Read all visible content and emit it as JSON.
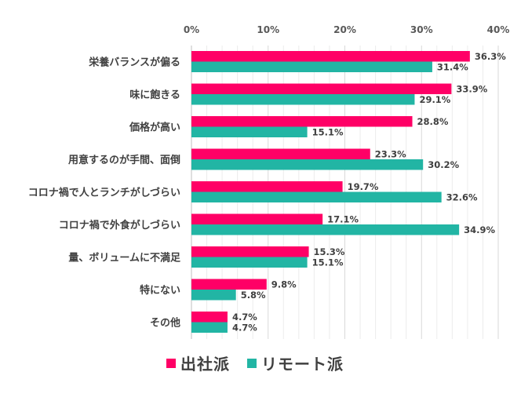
{
  "chart_data": {
    "type": "bar",
    "orientation": "horizontal",
    "title": "",
    "xlabel": "",
    "ylabel": "",
    "xlim": [
      0,
      40
    ],
    "x_ticks": [
      0,
      10,
      20,
      30,
      40
    ],
    "x_tick_labels": [
      "0%",
      "10%",
      "20%",
      "30%",
      "40%"
    ],
    "minor_grid_step": 2,
    "grid": true,
    "x_axis_position": "top",
    "categories": [
      "栄養バランスが偏る",
      "味に飽きる",
      "価格が高い",
      "用意するのが手間、面倒",
      "コロナ禍で人とランチがしづらい",
      "コロナ禍で外食がしづらい",
      "量、ボリュームに不満足",
      "特にない",
      "その他"
    ],
    "series": [
      {
        "name": "出社派",
        "color": "#ff0066",
        "values": [
          36.3,
          33.9,
          28.8,
          23.3,
          19.7,
          17.1,
          15.3,
          9.8,
          4.7
        ],
        "labels": [
          "36.3%",
          "33.9%",
          "28.8%",
          "23.3%",
          "19.7%",
          "17.1%",
          "15.3%",
          "9.8%",
          "4.7%"
        ]
      },
      {
        "name": "リモート派",
        "color": "#22b5a4",
        "values": [
          31.4,
          29.1,
          15.1,
          30.2,
          32.6,
          34.9,
          15.1,
          5.8,
          4.7
        ],
        "labels": [
          "31.4%",
          "29.1%",
          "15.1%",
          "30.2%",
          "32.6%",
          "34.9%",
          "15.1%",
          "5.8%",
          "4.7%"
        ]
      }
    ],
    "legend": {
      "position": "bottom",
      "entries": [
        "出社派",
        "リモート派"
      ]
    }
  }
}
